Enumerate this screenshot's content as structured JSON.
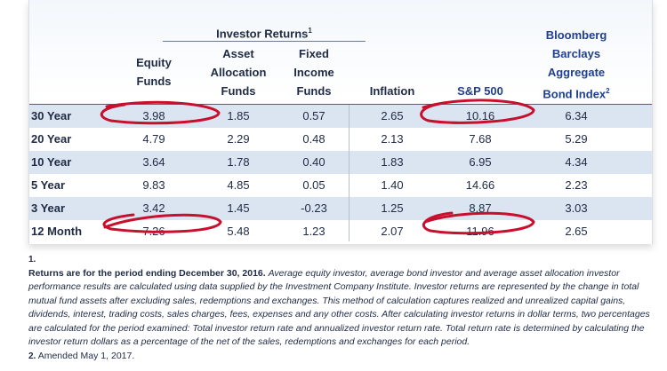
{
  "headers": {
    "group": "Investor Returns",
    "group_sup": "1",
    "equity": [
      "Equity",
      "Funds"
    ],
    "asset": [
      "Asset",
      "Allocation",
      "Funds"
    ],
    "fixed": [
      "Fixed",
      "Income",
      "Funds"
    ],
    "inflation": "Inflation",
    "sp500": "S&P 500",
    "bloomberg": [
      "Bloomberg",
      "Barclays",
      "Aggregate",
      "Bond Index"
    ],
    "bloomberg_sup": "2"
  },
  "rows": [
    {
      "label": "30 Year",
      "equity": "3.98",
      "asset": "1.85",
      "fixed": "0.57",
      "inflation": "2.65",
      "sp500": "10.16",
      "bond": "6.34"
    },
    {
      "label": "20 Year",
      "equity": "4.79",
      "asset": "2.29",
      "fixed": "0.48",
      "inflation": "2.13",
      "sp500": "7.68",
      "bond": "5.29"
    },
    {
      "label": "10 Year",
      "equity": "3.64",
      "asset": "1.78",
      "fixed": "0.40",
      "inflation": "1.83",
      "sp500": "6.95",
      "bond": "4.34"
    },
    {
      "label": "5 Year",
      "equity": "9.83",
      "asset": "4.85",
      "fixed": "0.05",
      "inflation": "1.40",
      "sp500": "14.66",
      "bond": "2.23"
    },
    {
      "label": "3 Year",
      "equity": "3.42",
      "asset": "1.45",
      "fixed": "-0.23",
      "inflation": "1.25",
      "sp500": "8.87",
      "bond": "3.03"
    },
    {
      "label": "12 Month",
      "equity": "7.26",
      "asset": "5.48",
      "fixed": "1.23",
      "inflation": "2.07",
      "sp500": "11.96",
      "bond": "2.65"
    }
  ],
  "footnotes": {
    "fn1_mark": "1.",
    "fn1_bold": "Returns are for the period ending December 30, 2016.",
    "fn1_text": "Average equity investor, average bond investor and average asset allocation investor performance results are calculated using data supplied by the Investment Company Institute. Investor returns are represented by the change in total mutual fund assets after excluding sales, redemptions and exchanges. This method of calculation captures realized and unrealized capital gains, dividends, interest, trading costs, sales charges, fees, expenses and any other costs. After calculating investor returns in dollar terms, two percentages are calculated for the period examined: Total investor return rate and annualized investor return rate. Total return rate is determined by calculating the investor return dollars as a percentage of the net of the sales, redemptions and exchanges for each period.",
    "fn2_mark": "2.",
    "fn2_text": "Amended May 1, 2017."
  },
  "colors": {
    "header_blue": "#1f3f8f",
    "row_shade": "#dbe5f1",
    "circle_red": "#c8102e"
  }
}
